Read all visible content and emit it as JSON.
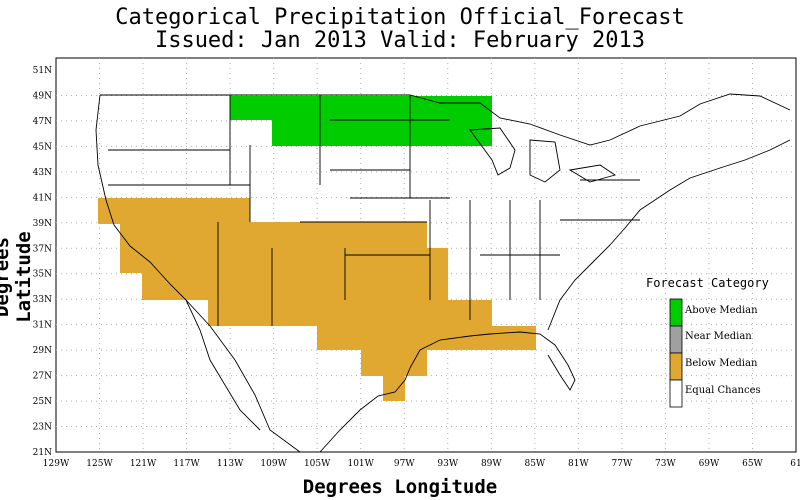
{
  "title": "Categorical Precipitation Official_Forecast",
  "subtitle": "Issued: Jan 2013 Valid: February 2013",
  "xlabel": "Degrees Longitude",
  "ylabel": "Degrees Latitude",
  "x_ticks": [
    "129W",
    "125W",
    "121W",
    "117W",
    "113W",
    "109W",
    "105W",
    "101W",
    "97W",
    "93W",
    "89W",
    "85W",
    "81W",
    "77W",
    "73W",
    "69W",
    "65W",
    "61"
  ],
  "y_ticks": [
    "51N",
    "49N",
    "47N",
    "45N",
    "43N",
    "41N",
    "39N",
    "37N",
    "35N",
    "33N",
    "31N",
    "29N",
    "27N",
    "25N",
    "23N",
    "21N"
  ],
  "legend": {
    "title": "Forecast Category",
    "items": [
      {
        "label": "Above Median",
        "color": "#00cc00"
      },
      {
        "label": "Near Median",
        "color": "#a0a0a0"
      },
      {
        "label": "Below Median",
        "color": "#e0a830"
      },
      {
        "label": "Equal Chances",
        "color": "#ffffff"
      }
    ]
  },
  "regions": [
    {
      "category": "Above Median",
      "cells_lon_lat": [
        [
          -113,
          47,
          -89,
          49
        ],
        [
          -109,
          45,
          -89,
          47
        ]
      ]
    },
    {
      "category": "Below Median",
      "note_extent_lon": [
        -125,
        -84
      ],
      "note_extent_lat": [
        25,
        39
      ]
    }
  ],
  "colors": {
    "above": "#00cc00",
    "below": "#e0a830",
    "grid": "#b0b0b0"
  }
}
